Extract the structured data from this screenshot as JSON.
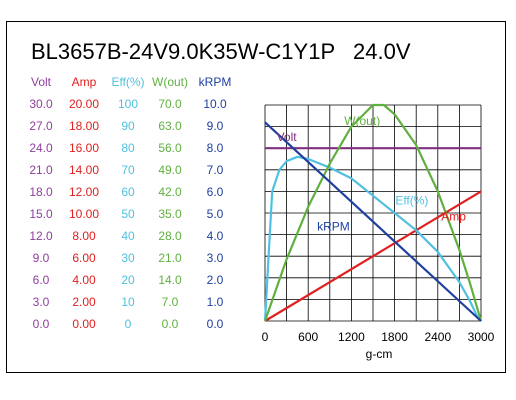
{
  "chart_data": {
    "type": "line",
    "title": "BL3657B-24V9.0K35W-C1Y1P",
    "subtitle": "24.0V",
    "xlabel": "g-cm",
    "xlim": [
      0,
      3000
    ],
    "xticks": [
      0,
      600,
      1200,
      1800,
      2400,
      3000
    ],
    "grid": true,
    "axes": [
      {
        "key": "volt",
        "header": "Volt",
        "color": "#9040a0",
        "max": 30.0,
        "ticks": [
          "30.0",
          "27.0",
          "24.0",
          "21.0",
          "18.0",
          "15.0",
          "12.0",
          "9.0",
          "6.0",
          "3.0",
          "0.0"
        ]
      },
      {
        "key": "amp",
        "header": "Amp",
        "color": "#e02020",
        "max": 20.0,
        "ticks": [
          "20.00",
          "18.00",
          "16.00",
          "14.00",
          "12.00",
          "10.00",
          "8.00",
          "6.00",
          "4.00",
          "2.00",
          "0.00"
        ]
      },
      {
        "key": "eff",
        "header": "Eff(%)",
        "color": "#50c0e0",
        "max": 100,
        "ticks": [
          "100",
          "90",
          "80",
          "70",
          "60",
          "50",
          "40",
          "30",
          "20",
          "10",
          "0"
        ]
      },
      {
        "key": "wout",
        "header": "W(out)",
        "color": "#60b040",
        "max": 70.0,
        "ticks": [
          "70.0",
          "63.0",
          "56.0",
          "49.0",
          "42.0",
          "35.0",
          "28.0",
          "21.0",
          "14.0",
          "7.0",
          "0.0"
        ]
      },
      {
        "key": "krpm",
        "header": "kRPM",
        "color": "#2040a0",
        "max": 10.0,
        "ticks": [
          "10.0",
          "9.0",
          "8.0",
          "7.0",
          "6.0",
          "5.0",
          "4.0",
          "3.0",
          "2.0",
          "1.0",
          "0.0"
        ]
      }
    ],
    "series": [
      {
        "name": "Volt",
        "axis": "volt",
        "color": "#803080",
        "label_at": [
          300,
          25.0
        ],
        "points": [
          [
            0,
            24.0
          ],
          [
            3000,
            24.0
          ]
        ]
      },
      {
        "name": "Amp",
        "axis": "amp",
        "color": "#e02020",
        "label_at": [
          2620,
          9.3
        ],
        "points": [
          [
            0,
            0.0
          ],
          [
            3000,
            12.0
          ]
        ]
      },
      {
        "name": "Eff(%)",
        "axis": "eff",
        "color": "#50c0e0",
        "label_at": [
          2040,
          54
        ],
        "points": [
          [
            0,
            0
          ],
          [
            100,
            60
          ],
          [
            200,
            70
          ],
          [
            300,
            74
          ],
          [
            450,
            76
          ],
          [
            600,
            75
          ],
          [
            900,
            71
          ],
          [
            1200,
            66
          ],
          [
            1500,
            58
          ],
          [
            1800,
            50
          ],
          [
            2100,
            42
          ],
          [
            2400,
            32
          ],
          [
            2700,
            18
          ],
          [
            2850,
            9
          ],
          [
            2950,
            2
          ],
          [
            3000,
            0
          ]
        ]
      },
      {
        "name": "W(out)",
        "axis": "wout",
        "color": "#60b040",
        "label_at": [
          1350,
          63.5
        ],
        "points": [
          [
            0,
            0
          ],
          [
            300,
            20
          ],
          [
            600,
            37
          ],
          [
            900,
            51
          ],
          [
            1200,
            63
          ],
          [
            1500,
            70
          ],
          [
            1650,
            70
          ],
          [
            1800,
            67
          ],
          [
            2100,
            57
          ],
          [
            2400,
            42
          ],
          [
            2700,
            23
          ],
          [
            2850,
            12
          ],
          [
            3000,
            0
          ]
        ]
      },
      {
        "name": "kRPM",
        "axis": "krpm",
        "color": "#2040a0",
        "label_at": [
          950,
          4.2
        ],
        "points": [
          [
            0,
            9.2
          ],
          [
            3000,
            0.0
          ]
        ]
      }
    ]
  }
}
